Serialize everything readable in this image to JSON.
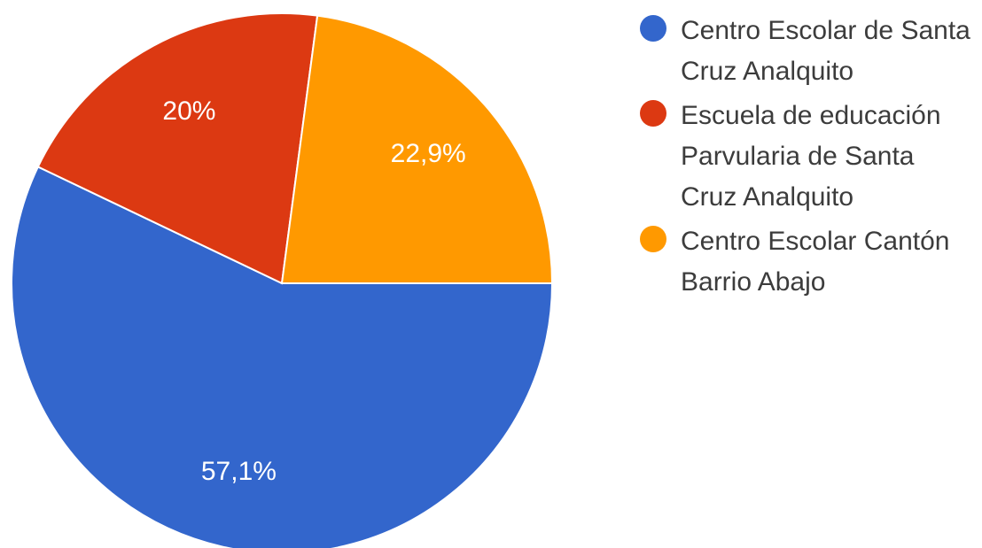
{
  "chart_data": {
    "type": "pie",
    "title": "",
    "slices": [
      {
        "label": "Centro Escolar de Santa Cruz Analquito",
        "value": 57.1,
        "value_label": "57,1%",
        "color": "#3366cc"
      },
      {
        "label": "Escuela de educación Parvularia de Santa Cruz Analquito",
        "value": 20,
        "value_label": "20%",
        "color": "#dc3912"
      },
      {
        "label": "Centro Escolar Cantón Barrio Abajo",
        "value": 22.9,
        "value_label": "22,9%",
        "color": "#ff9900"
      }
    ],
    "start": "3 o'clock",
    "direction": "clockwise",
    "legend_position": "right"
  }
}
